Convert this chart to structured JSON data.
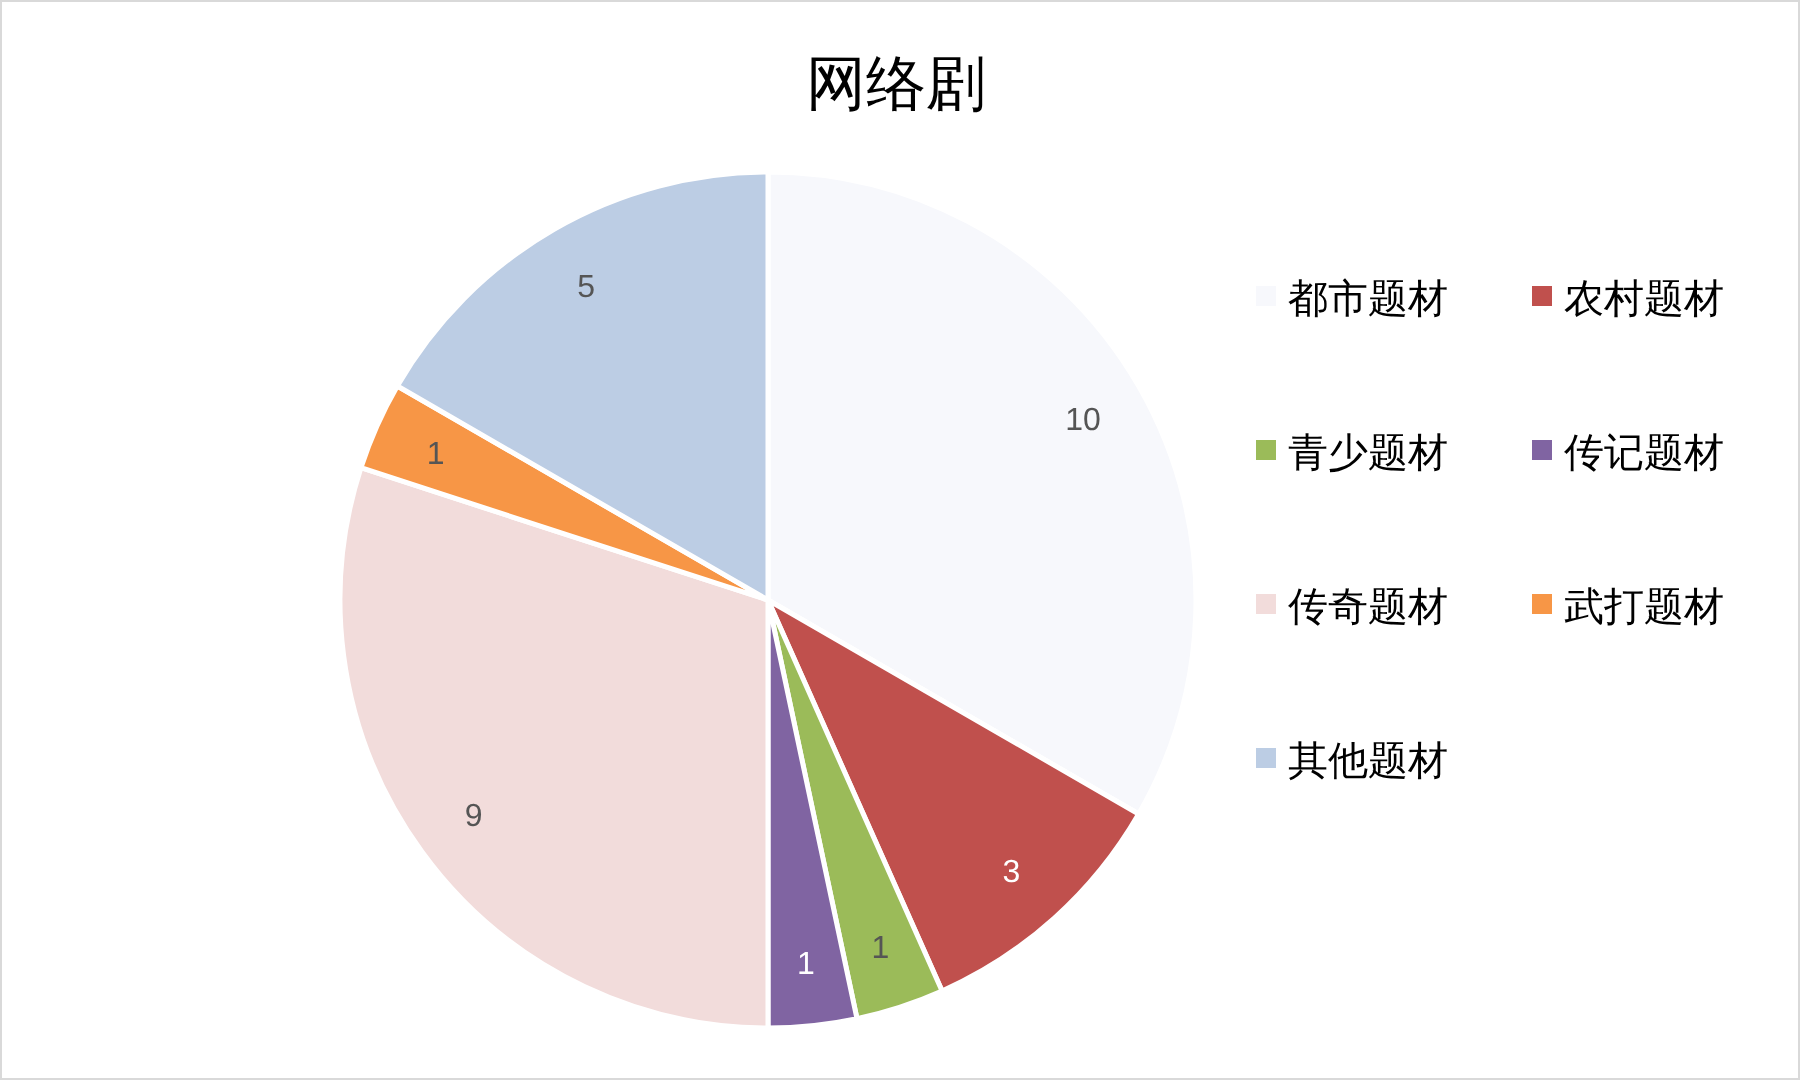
{
  "chart_data": {
    "type": "pie",
    "title": "网络剧",
    "categories": [
      "都市题材",
      "农村题材",
      "青少题材",
      "传记题材",
      "传奇题材",
      "武打题材",
      "其他题材"
    ],
    "values": [
      10,
      3,
      1,
      1,
      9,
      1,
      5
    ],
    "colors": [
      "#f7f8fc",
      "#c0504d",
      "#9bbb59",
      "#8064a2",
      "#f2dcdb",
      "#f79646",
      "#bccde4"
    ],
    "data_labels": true,
    "legend": "right"
  }
}
